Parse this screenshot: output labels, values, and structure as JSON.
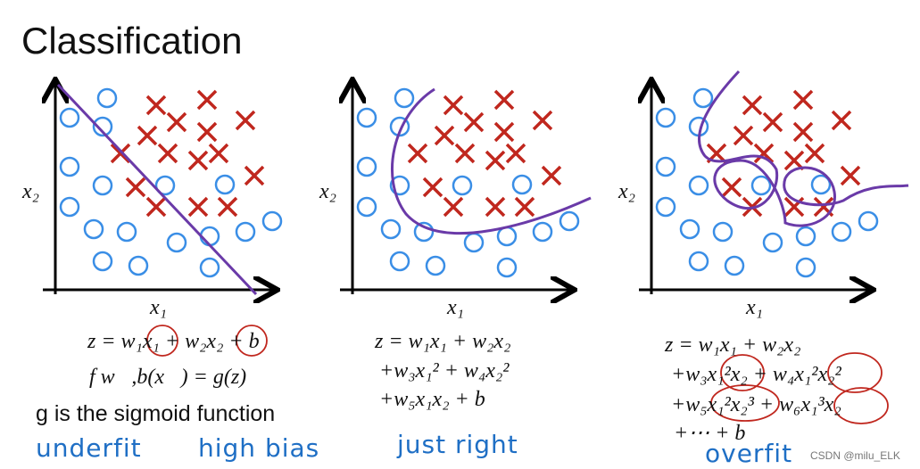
{
  "title": "Classification",
  "panels": [
    {
      "y_label": "x₂",
      "x_label": "x₁",
      "formula": [
        "z = w₁x₁ + w₂x₂ + b",
        "f w⃗,b(x⃗) = g(z)"
      ],
      "note": "underfit",
      "note2": "high bias"
    },
    {
      "y_label": "x₂",
      "x_label": "x₁",
      "formula": [
        "z = w₁x₁ + w₂x₂",
        "+w₃x₁² + w₄x₂²",
        "+w₅x₁x₂ + b"
      ],
      "note": "just right"
    },
    {
      "y_label": "x₂",
      "x_label": "x₁",
      "formula": [
        "z = w₁x₁ + w₂x₂",
        "+w₃x₁²x₂ + w₄x₁²x₂²",
        "+w₅x₁²x₂³ + w₆x₁³x₂",
        "+⋯ + b"
      ],
      "note": "overfit"
    }
  ],
  "sigmoid_note": "g is the sigmoid function",
  "watermark": "CSDN @milu_ELK"
}
